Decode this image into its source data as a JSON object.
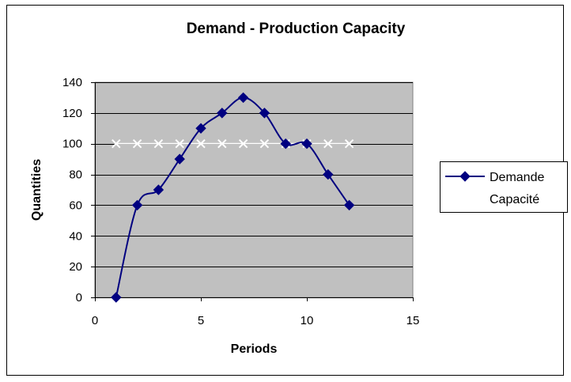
{
  "chart_data": {
    "type": "scatter",
    "title": "Demand - Production Capacity",
    "xlabel": "Periods",
    "ylabel": "Quantities",
    "xlim": [
      0,
      15
    ],
    "ylim": [
      0,
      140
    ],
    "xticks": [
      0,
      5,
      10,
      15
    ],
    "yticks": [
      0,
      20,
      40,
      60,
      80,
      100,
      120,
      140
    ],
    "grid": "horizontal major gridlines",
    "legend_position": "right",
    "plot_background": "#c0c0c0",
    "series": [
      {
        "name": "Demande",
        "color": "#000080",
        "marker": "diamond",
        "line": "smoothed",
        "x": [
          1,
          2,
          3,
          4,
          5,
          6,
          7,
          8,
          9,
          10,
          11,
          12
        ],
        "y": [
          0,
          60,
          70,
          90,
          110,
          120,
          130,
          120,
          100,
          100,
          80,
          60
        ]
      },
      {
        "name": "Capacité",
        "color": "#ffffff",
        "marker": "x",
        "line": "straight",
        "x": [
          1,
          2,
          3,
          4,
          5,
          6,
          7,
          8,
          9,
          10,
          11,
          12
        ],
        "y": [
          100,
          100,
          100,
          100,
          100,
          100,
          100,
          100,
          100,
          100,
          100,
          100
        ]
      }
    ]
  }
}
